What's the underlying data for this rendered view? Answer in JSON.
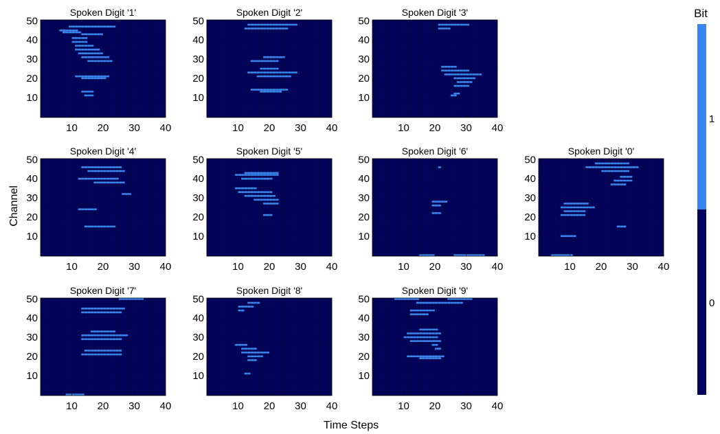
{
  "figure": {
    "xlabel": "Time Steps",
    "ylabel": "Channel",
    "colorbar": {
      "title": "Bit",
      "ticks": [
        "0",
        "1"
      ],
      "colors": {
        "0": "#03045e",
        "1": "#3a86f0"
      }
    }
  },
  "chart_data": [
    {
      "type": "heatmap",
      "title": "Spoken Digit '1'",
      "xticks": [
        "10",
        "20",
        "30",
        "40"
      ],
      "yticks": [
        "10",
        "20",
        "30",
        "40",
        "50"
      ],
      "xlim": [
        0,
        40
      ],
      "ylim": [
        0,
        50
      ],
      "active_cells": [
        [
          9,
          47,
          23
        ],
        [
          6,
          45,
          11
        ],
        [
          7,
          44,
          12
        ],
        [
          13,
          43,
          19
        ],
        [
          10,
          41,
          14
        ],
        [
          10,
          39,
          14
        ],
        [
          11,
          37,
          16
        ],
        [
          11,
          35,
          18
        ],
        [
          12,
          33,
          19
        ],
        [
          13,
          31,
          21
        ],
        [
          15,
          29,
          22
        ],
        [
          11,
          21,
          21
        ],
        [
          13,
          20,
          20
        ],
        [
          13,
          13,
          16
        ],
        [
          14,
          11,
          16
        ]
      ]
    },
    {
      "type": "heatmap",
      "title": "Spoken Digit '2'",
      "xticks": [
        "10",
        "20",
        "30",
        "40"
      ],
      "yticks": [
        "10",
        "20",
        "30",
        "40",
        "50"
      ],
      "xlim": [
        0,
        40
      ],
      "ylim": [
        0,
        50
      ],
      "active_cells": [
        [
          13,
          48,
          28
        ],
        [
          12,
          46,
          25
        ],
        [
          18,
          31,
          24
        ],
        [
          14,
          29,
          22
        ],
        [
          17,
          25,
          22
        ],
        [
          13,
          23,
          28
        ],
        [
          16,
          21,
          26
        ],
        [
          14,
          14,
          25
        ],
        [
          17,
          13,
          23
        ]
      ]
    },
    {
      "type": "heatmap",
      "title": "Spoken Digit '3'",
      "xticks": [
        "10",
        "20",
        "30",
        "40"
      ],
      "yticks": [
        "10",
        "20",
        "30",
        "40",
        "50"
      ],
      "xlim": [
        0,
        40
      ],
      "ylim": [
        0,
        50
      ],
      "active_cells": [
        [
          21,
          48,
          30
        ],
        [
          21,
          46,
          24
        ],
        [
          22,
          26,
          26
        ],
        [
          22,
          24,
          30
        ],
        [
          23,
          22,
          34
        ],
        [
          26,
          20,
          32
        ],
        [
          27,
          18,
          31
        ],
        [
          26,
          16,
          30
        ],
        [
          26,
          12,
          27
        ],
        [
          25,
          11,
          26
        ]
      ]
    },
    {
      "type": "heatmap",
      "title": "Spoken Digit '4'",
      "xticks": [
        "10",
        "20",
        "30",
        "40"
      ],
      "yticks": [
        "10",
        "20",
        "30",
        "40",
        "50"
      ],
      "xlim": [
        0,
        40
      ],
      "ylim": [
        0,
        50
      ],
      "active_cells": [
        [
          13,
          46,
          25
        ],
        [
          15,
          44,
          26
        ],
        [
          12,
          40,
          24
        ],
        [
          17,
          38,
          26
        ],
        [
          26,
          32,
          28
        ],
        [
          12,
          24,
          17
        ],
        [
          14,
          15,
          23
        ]
      ]
    },
    {
      "type": "heatmap",
      "title": "Spoken Digit '5'",
      "xticks": [
        "10",
        "20",
        "30",
        "40"
      ],
      "yticks": [
        "10",
        "20",
        "30",
        "40",
        "50"
      ],
      "xlim": [
        0,
        40
      ],
      "ylim": [
        0,
        50
      ],
      "active_cells": [
        [
          12,
          43,
          22
        ],
        [
          9,
          42,
          22
        ],
        [
          11,
          40,
          20
        ],
        [
          9,
          35,
          15
        ],
        [
          10,
          33,
          20
        ],
        [
          12,
          31,
          21
        ],
        [
          15,
          29,
          22
        ],
        [
          18,
          27,
          22
        ],
        [
          18,
          21,
          20
        ]
      ]
    },
    {
      "type": "heatmap",
      "title": "Spoken Digit '6'",
      "xticks": [
        "10",
        "20",
        "30",
        "40"
      ],
      "yticks": [
        "10",
        "20",
        "30",
        "40",
        "50"
      ],
      "xlim": [
        0,
        40
      ],
      "ylim": [
        0,
        50
      ],
      "active_cells": [
        [
          21,
          46,
          21
        ],
        [
          19,
          28,
          23
        ],
        [
          19,
          26,
          21
        ],
        [
          19,
          22,
          21
        ],
        [
          15,
          0,
          19
        ],
        [
          26,
          0,
          35
        ]
      ]
    },
    {
      "type": "heatmap",
      "title": "Spoken Digit '0'",
      "xticks": [
        "10",
        "20",
        "30",
        "40"
      ],
      "yticks": [
        "10",
        "20",
        "30",
        "40",
        "50"
      ],
      "xlim": [
        0,
        40
      ],
      "ylim": [
        0,
        50
      ],
      "active_cells": [
        [
          18,
          48,
          28
        ],
        [
          15,
          46,
          31
        ],
        [
          20,
          44,
          28
        ],
        [
          26,
          41,
          29
        ],
        [
          24,
          39,
          29
        ],
        [
          23,
          37,
          27
        ],
        [
          8,
          27,
          15
        ],
        [
          7,
          25,
          17
        ],
        [
          8,
          23,
          14
        ],
        [
          7,
          21,
          14
        ],
        [
          25,
          15,
          27
        ],
        [
          7,
          10,
          11
        ],
        [
          4,
          0,
          10
        ]
      ]
    },
    {
      "type": "heatmap",
      "title": "Spoken Digit '7'",
      "xticks": [
        "10",
        "20",
        "30",
        "40"
      ],
      "yticks": [
        "10",
        "20",
        "30",
        "40",
        "50"
      ],
      "xlim": [
        0,
        40
      ],
      "ylim": [
        0,
        50
      ],
      "active_cells": [
        [
          25,
          50,
          32
        ],
        [
          13,
          45,
          26
        ],
        [
          13,
          43,
          25
        ],
        [
          16,
          33,
          23
        ],
        [
          13,
          31,
          27
        ],
        [
          13,
          29,
          25
        ],
        [
          14,
          23,
          25
        ],
        [
          13,
          21,
          25
        ],
        [
          8,
          0,
          13
        ]
      ]
    },
    {
      "type": "heatmap",
      "title": "Spoken Digit '8'",
      "xticks": [
        "10",
        "20",
        "30",
        "40"
      ],
      "yticks": [
        "10",
        "20",
        "30",
        "40",
        "50"
      ],
      "xlim": [
        0,
        40
      ],
      "ylim": [
        0,
        50
      ],
      "active_cells": [
        [
          13,
          48,
          16
        ],
        [
          10,
          46,
          14
        ],
        [
          10,
          44,
          11
        ],
        [
          9,
          26,
          12
        ],
        [
          11,
          24,
          15
        ],
        [
          11,
          22,
          19
        ],
        [
          13,
          20,
          17
        ],
        [
          13,
          18,
          15
        ],
        [
          12,
          11,
          13
        ]
      ]
    },
    {
      "type": "heatmap",
      "title": "Spoken Digit '9'",
      "xticks": [
        "10",
        "20",
        "30",
        "40"
      ],
      "yticks": [
        "10",
        "20",
        "30",
        "40",
        "50"
      ],
      "xlim": [
        0,
        40
      ],
      "ylim": [
        0,
        50
      ],
      "active_cells": [
        [
          7,
          50,
          14
        ],
        [
          24,
          50,
          31
        ],
        [
          14,
          48,
          28
        ],
        [
          12,
          44,
          19
        ],
        [
          12,
          42,
          17
        ],
        [
          15,
          34,
          20
        ],
        [
          11,
          32,
          21
        ],
        [
          10,
          30,
          20
        ],
        [
          12,
          28,
          21
        ],
        [
          19,
          26,
          20
        ],
        [
          20,
          24,
          21
        ],
        [
          11,
          20,
          22
        ],
        [
          15,
          19,
          21
        ]
      ]
    }
  ]
}
